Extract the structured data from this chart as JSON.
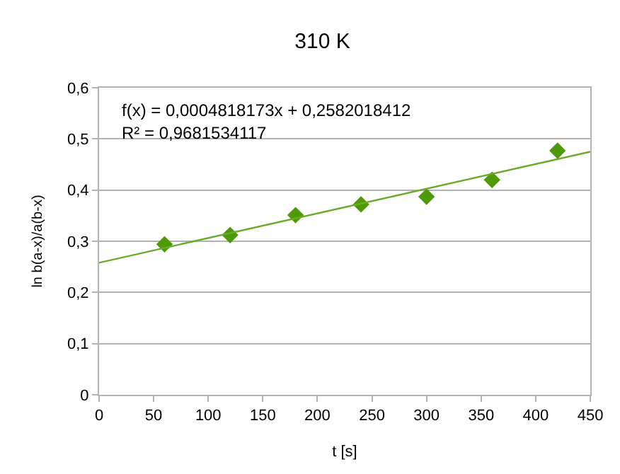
{
  "chart_data": {
    "type": "scatter",
    "title": "310 K",
    "xlabel": "t [s]",
    "ylabel": "ln b(a-x)/a(b-x)",
    "annotations": [
      "f(x) = 0,0004818173x + 0,2582018412",
      "R² = 0,9681534117"
    ],
    "series": [
      {
        "color": "#4e9a06",
        "marker": "diamond",
        "x": [
          60,
          120,
          180,
          240,
          300,
          360,
          420
        ],
        "values": [
          0.294,
          0.312,
          0.351,
          0.372,
          0.387,
          0.42,
          0.477
        ]
      },
      {
        "type": "line",
        "color": "#6aaa2a",
        "marker": "none",
        "x": [
          0,
          450
        ],
        "values": [
          0.258,
          0.475
        ]
      }
    ],
    "xlim": [
      0,
      450
    ],
    "xticks": [
      0,
      50,
      100,
      150,
      200,
      250,
      300,
      350,
      400,
      450
    ],
    "ylim": [
      0,
      0.6
    ],
    "yticks": [
      {
        "value": 0,
        "label": "0"
      },
      {
        "value": 0.1,
        "label": "0,1"
      },
      {
        "value": 0.2,
        "label": "0,2"
      },
      {
        "value": 0.3,
        "label": "0,3"
      },
      {
        "value": 0.4,
        "label": "0,4"
      },
      {
        "value": 0.5,
        "label": "0,5"
      },
      {
        "value": 0.6,
        "label": "0,6"
      }
    ],
    "grid": "y"
  }
}
